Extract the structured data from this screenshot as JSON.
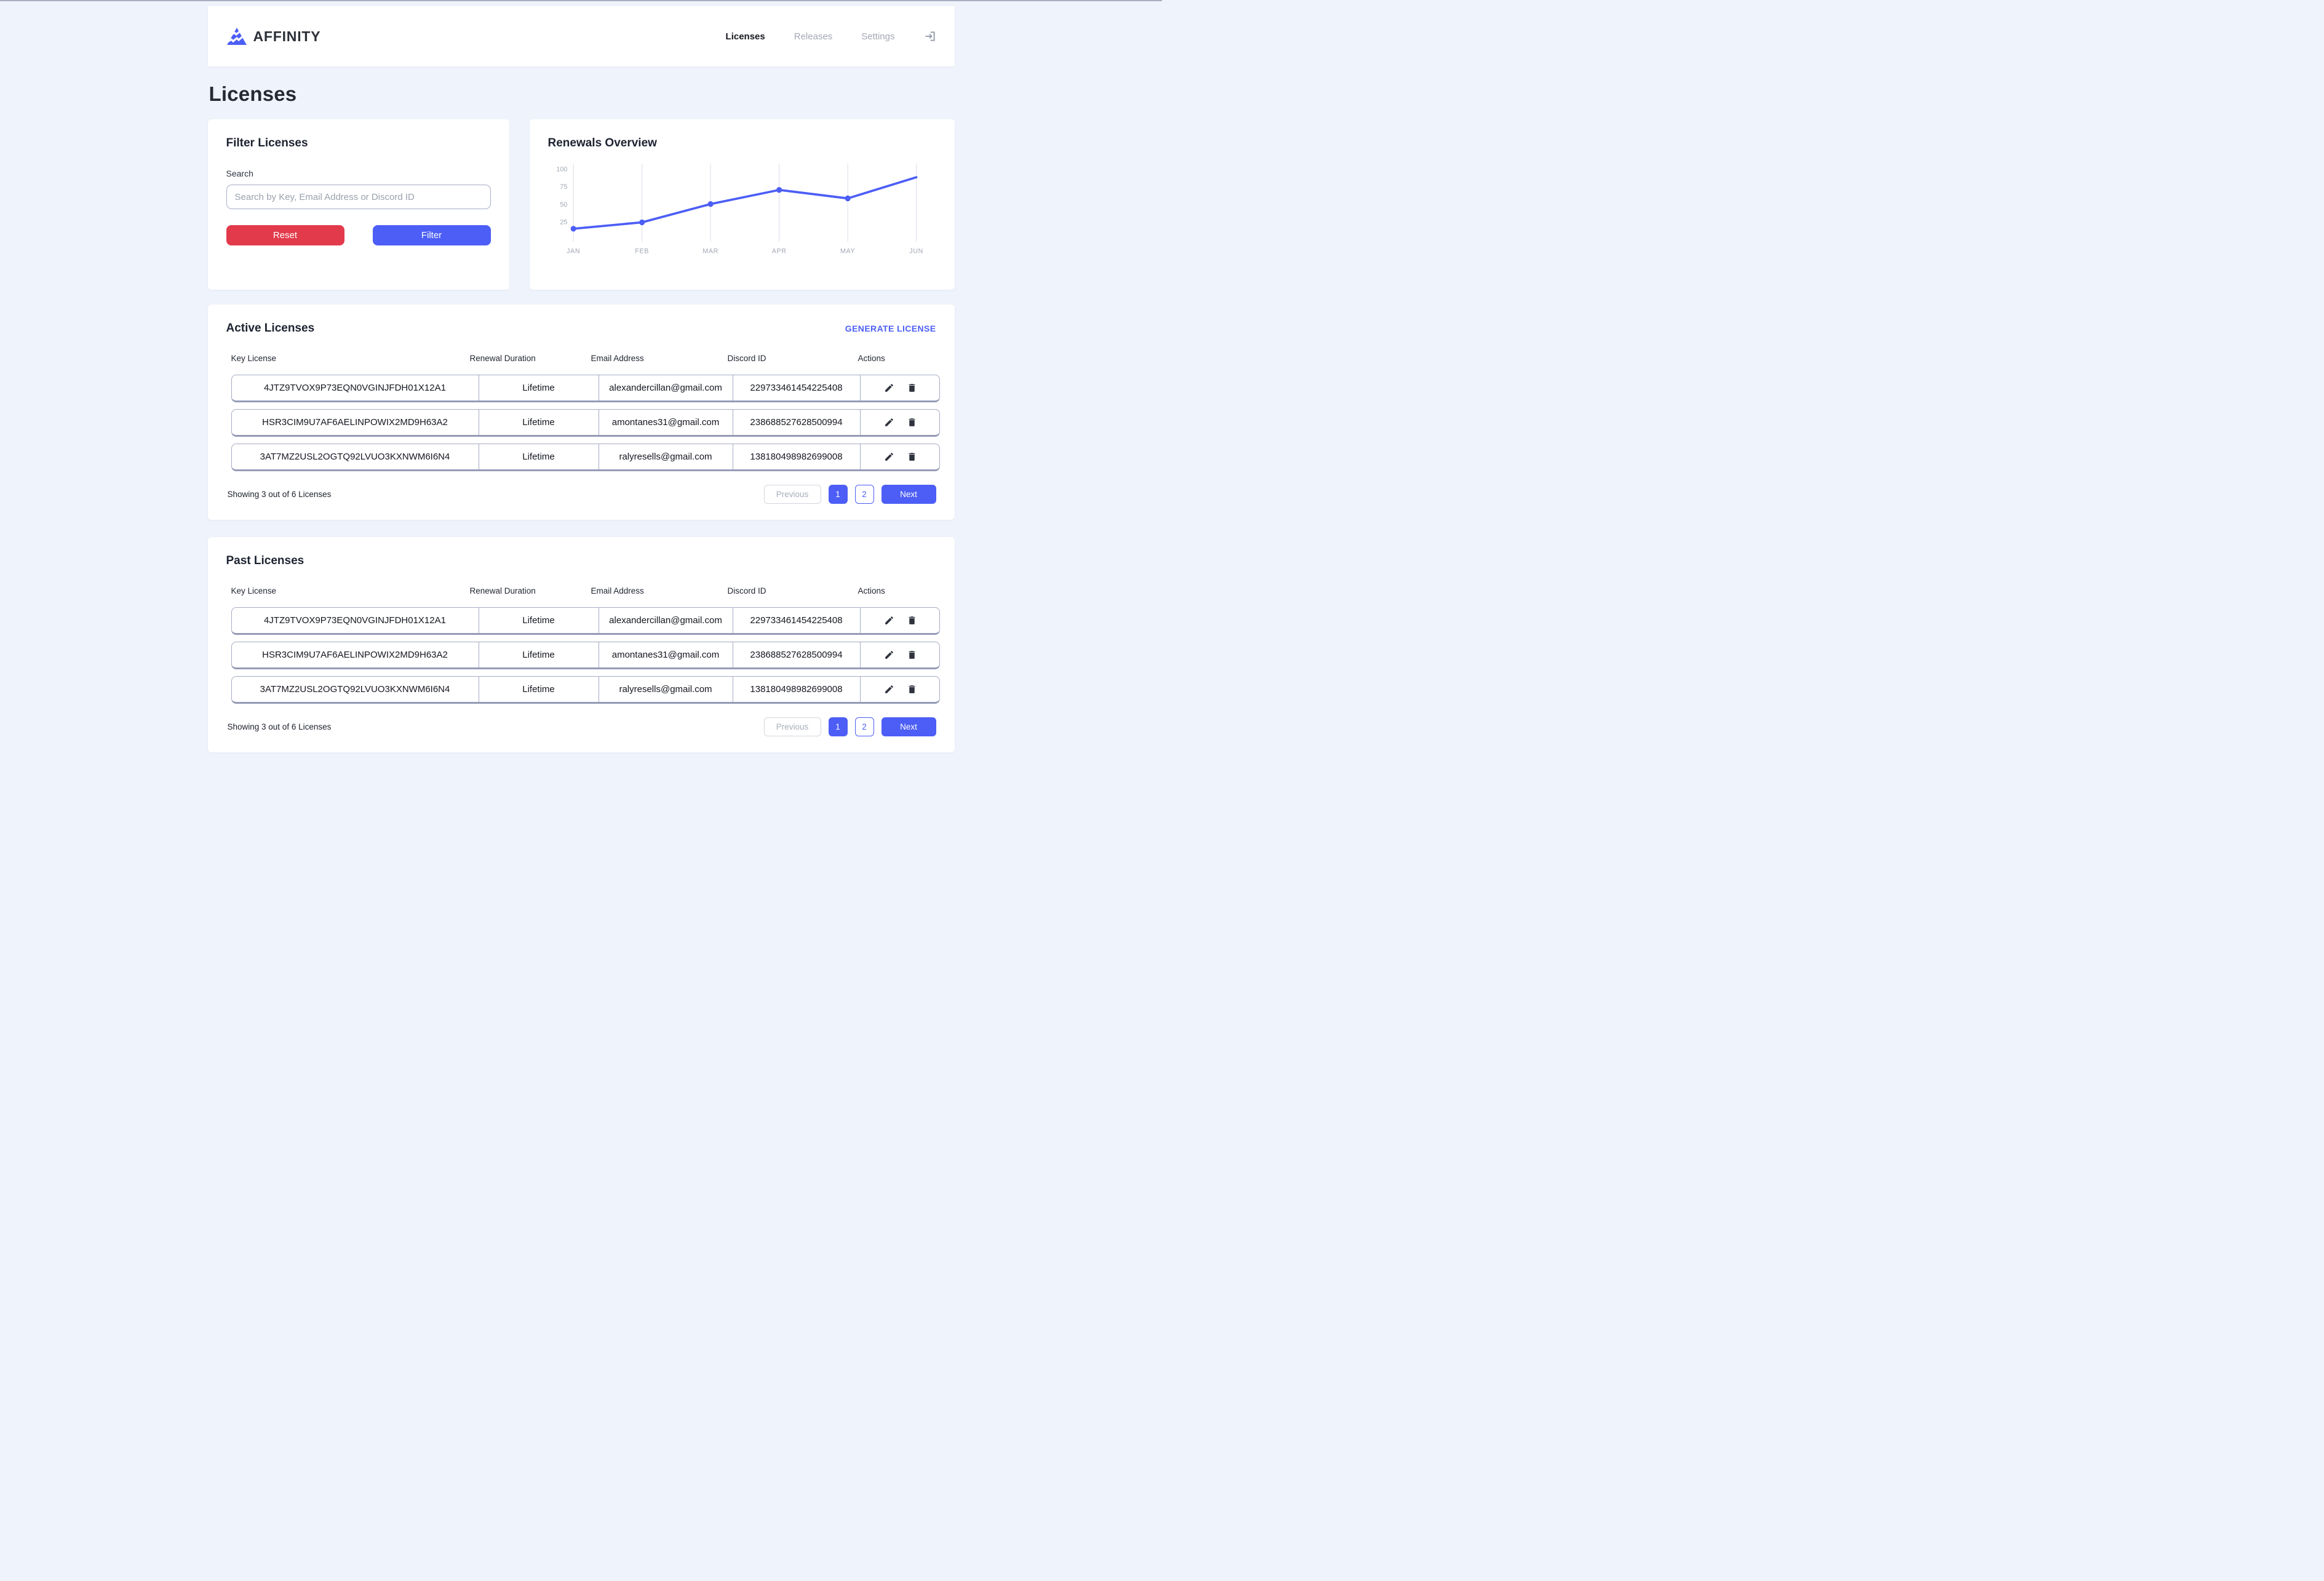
{
  "brand": {
    "name": "AFFINITY",
    "logo_color": "#4c5ef5"
  },
  "nav": {
    "items": [
      {
        "label": "Licenses",
        "active": true
      },
      {
        "label": "Releases",
        "active": false
      },
      {
        "label": "Settings",
        "active": false
      }
    ]
  },
  "page": {
    "title": "Licenses"
  },
  "filter": {
    "title": "Filter Licenses",
    "search_label": "Search",
    "search_placeholder": "Search by Key, Email Address or Discord ID",
    "search_value": "",
    "reset_label": "Reset",
    "filter_label": "Filter"
  },
  "renewals": {
    "title": "Renewals Overview"
  },
  "chart_data": {
    "type": "line",
    "title": "Renewals Overview",
    "categories": [
      "JAN",
      "FEB",
      "MAR",
      "APR",
      "MAY",
      "JUN"
    ],
    "values": [
      15,
      24,
      50,
      70,
      58,
      88
    ],
    "y_ticks": [
      25,
      50,
      75,
      100
    ],
    "ylim": [
      0,
      105
    ],
    "grid": "vertical-only",
    "legend": "none",
    "line_color": "#4c5ef5",
    "point_color": "#4c5ef5",
    "points_shown_on": [
      "JAN",
      "FEB",
      "MAR",
      "APR",
      "MAY"
    ],
    "axis_label_color": "#a2a7b4"
  },
  "active_section": {
    "title": "Active Licenses",
    "action_label": "GENERATE LICENSE"
  },
  "past_section": {
    "title": "Past Licenses"
  },
  "table": {
    "headers": [
      "Key License",
      "Renewal Duration",
      "Email Address",
      "Discord ID",
      "Actions"
    ]
  },
  "licenses": [
    {
      "key": "4JTZ9TVOX9P73EQN0VGINJFDH01X12A1",
      "duration": "Lifetime",
      "email": "alexandercillan@gmail.com",
      "discord": "229733461454225408"
    },
    {
      "key": "HSR3CIM9U7AF6AELINPOWIX2MD9H63A2",
      "duration": "Lifetime",
      "email": "amontanes31@gmail.com",
      "discord": "238688527628500994"
    },
    {
      "key": "3AT7MZ2USL2OGTQ92LVUO3KXNWM6I6N4",
      "duration": "Lifetime",
      "email": "ralyresells@gmail.com",
      "discord": "138180498982699008"
    }
  ],
  "pagination": {
    "summary": "Showing 3 out of 6 Licenses",
    "previous_label": "Previous",
    "pages": [
      "1",
      "2"
    ],
    "active_page": "1",
    "next_label": "Next"
  },
  "colors": {
    "accent": "#4c5ef5",
    "danger": "#e23a4b",
    "background": "#eff3fc",
    "row_border": "#a6abc4",
    "muted_text": "#a2a7b4"
  }
}
